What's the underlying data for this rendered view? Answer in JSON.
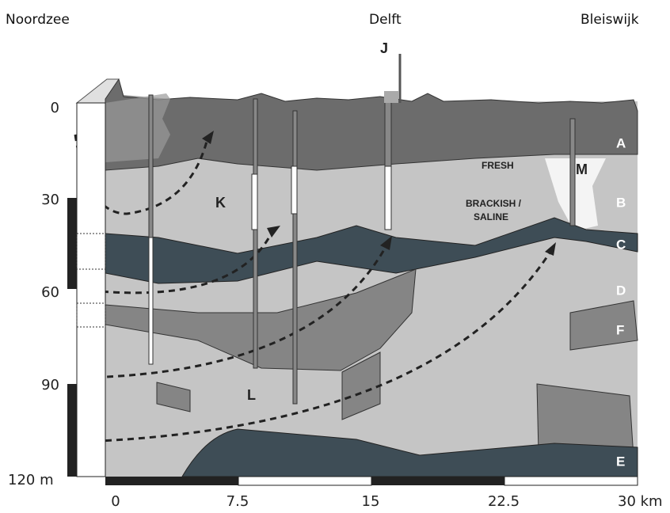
{
  "places": [
    "Noordzee",
    "Delft",
    "Bleiswijk"
  ],
  "markers": {
    "J": "J",
    "K": "K",
    "L": "L",
    "M": "M"
  },
  "zones": [
    "FRESH",
    "BRACKISH /",
    "SALINE"
  ],
  "layers": [
    "A",
    "B",
    "C",
    "D",
    "F",
    "E"
  ],
  "depth_labels": [
    "0",
    "30",
    "60",
    "90",
    "120 m"
  ],
  "distance_labels": [
    "0",
    "7.5",
    "15",
    "22.5",
    "30 km"
  ]
}
